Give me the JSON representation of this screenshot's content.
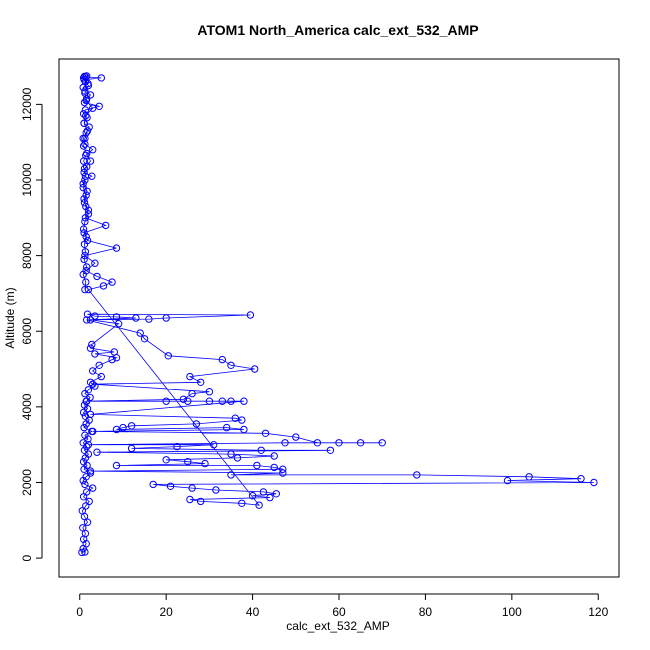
{
  "chart_data": {
    "type": "scatter",
    "title": "ATOM1 North_America calc_ext_532_AMP",
    "xlabel": "calc_ext_532_AMP",
    "ylabel": "Altitude (m)",
    "xlim": [
      -4.8,
      124.8
    ],
    "ylim": [
      -500,
      13200
    ],
    "xticks": [
      0,
      20,
      40,
      60,
      80,
      100,
      120
    ],
    "yticks": [
      0,
      2000,
      4000,
      6000,
      8000,
      10000,
      12000
    ],
    "grid": false,
    "legend": "none",
    "series": [
      {
        "marker": "open-circle",
        "line": true,
        "x": [
          0.5,
          1.2,
          0.8,
          1.5,
          0.9,
          1.3,
          0.7,
          1.8,
          1.1,
          0.6,
          1.4,
          2.2,
          0.9,
          1.6,
          3.0,
          1.2,
          0.8,
          1.5,
          2.5,
          1.0,
          1.7,
          0.9,
          1.3,
          2.0,
          1.1,
          1.6,
          0.8,
          1.9,
          1.2,
          2.8,
          1.0,
          1.5,
          2.2,
          1.3,
          0.9,
          1.8,
          1.1,
          1.6,
          2.4,
          1.2,
          2.0,
          3.5,
          2.5,
          5.0,
          3.0,
          4.5,
          7.5,
          8.5,
          3.5,
          8.0,
          2.5,
          2.8,
          9.0,
          2.5,
          16.0,
          20.0,
          39.5,
          1.8,
          3.5,
          8.5,
          13.0,
          1.6,
          14.0,
          15.0,
          20.5,
          33.0,
          35.0,
          40.5,
          25.5,
          28.0,
          3.0,
          30.0,
          26.0,
          24.0,
          1.5,
          20.0,
          25.0,
          30.0,
          33.0,
          35.0,
          38.0,
          2.5,
          36.0,
          37.5,
          27.0,
          12.0,
          10.0,
          8.5,
          34.0,
          38.0,
          3.0,
          43.0,
          50.0,
          55.0,
          60.0,
          65.0,
          70.0,
          47.5,
          2.0,
          31.0,
          22.5,
          12.0,
          42.0,
          58.0,
          4.0,
          35.0,
          45.0,
          36.5,
          20.0,
          25.0,
          29.0,
          8.5,
          41.0,
          45.0,
          47.0,
          2.5,
          47.0,
          35.0,
          78.0,
          104.0,
          116.0,
          99.0,
          119.0,
          17.0,
          21.0,
          26.0,
          31.5,
          42.5,
          45.5,
          40.0,
          44.0,
          25.5,
          28.0,
          37.5,
          41.5,
          2.0,
          5.5,
          7.5,
          4.0,
          1.5,
          3.5,
          1.2,
          8.5,
          1.8,
          1.0,
          6.0,
          1.3,
          2.0,
          1.1,
          1.5,
          0.8,
          1.2,
          2.8,
          1.0,
          1.6,
          0.9,
          1.4,
          3.0,
          1.2,
          0.8,
          1.5,
          2.2,
          1.0,
          1.7,
          0.9,
          1.3,
          4.5,
          1.1,
          1.6,
          2.5,
          1.2,
          0.8,
          1.9,
          1.0,
          5.0,
          1.4,
          1.1,
          1.6,
          0.9,
          1.3,
          2.0,
          1.2,
          1.5,
          3.0,
          1.4,
          1.0,
          1.8,
          1.2,
          0.9,
          1.6,
          2.5,
          1.1,
          1.3,
          0.8,
          1.7,
          1.0,
          1.4,
          2.0,
          1.2,
          0.9,
          1.5,
          1.1,
          1.3,
          1.0,
          1.6,
          0.8,
          1.4,
          1.2
        ],
        "y": [
          150,
          160,
          250,
          380,
          500,
          650,
          800,
          950,
          1100,
          1250,
          1380,
          1500,
          1620,
          1750,
          1850,
          1950,
          2050,
          2150,
          2250,
          2350,
          2450,
          2550,
          2650,
          2750,
          2850,
          2950,
          3050,
          3150,
          3250,
          3350,
          3450,
          3550,
          3650,
          3750,
          3850,
          3950,
          4050,
          4150,
          4250,
          4350,
          4450,
          4550,
          4650,
          4800,
          4950,
          5100,
          5250,
          5300,
          5400,
          5450,
          5550,
          5650,
          6200,
          6300,
          6320,
          6350,
          6430,
          6450,
          6400,
          6380,
          6350,
          6300,
          5950,
          5800,
          5350,
          5250,
          5100,
          5000,
          4800,
          4650,
          4600,
          4400,
          4350,
          4200,
          4150,
          4150,
          4150,
          4150,
          4150,
          4150,
          4150,
          3800,
          3700,
          3650,
          3550,
          3500,
          3450,
          3400,
          3450,
          3400,
          3350,
          3300,
          3200,
          3050,
          3050,
          3050,
          3050,
          3050,
          3000,
          3000,
          2950,
          2900,
          2850,
          2850,
          2800,
          2750,
          2700,
          2650,
          2600,
          2550,
          2500,
          2450,
          2450,
          2400,
          2350,
          2300,
          2250,
          2200,
          2200,
          2150,
          2100,
          2050,
          2000,
          1950,
          1900,
          1850,
          1800,
          1750,
          1700,
          1650,
          1600,
          1550,
          1500,
          1450,
          1400,
          7100,
          7200,
          7300,
          7450,
          7600,
          7800,
          8000,
          8200,
          8400,
          8600,
          8800,
          9000,
          9200,
          9400,
          9600,
          9800,
          10000,
          10100,
          10200,
          10350,
          10500,
          10650,
          10800,
          10950,
          11100,
          11250,
          11400,
          11500,
          11650,
          11750,
          11850,
          11950,
          12050,
          12150,
          12250,
          12350,
          12450,
          12550,
          12650,
          12700,
          12720,
          12740,
          12750,
          12700,
          12600,
          12500,
          12300,
          12100,
          11900,
          11700,
          11500,
          11300,
          11100,
          10900,
          10700,
          10500,
          10300,
          10100,
          9900,
          9700,
          9500,
          9300,
          9100,
          8900,
          8700,
          8500,
          8300,
          8100,
          7900,
          7700,
          7500,
          7300,
          7100
        ]
      }
    ]
  }
}
